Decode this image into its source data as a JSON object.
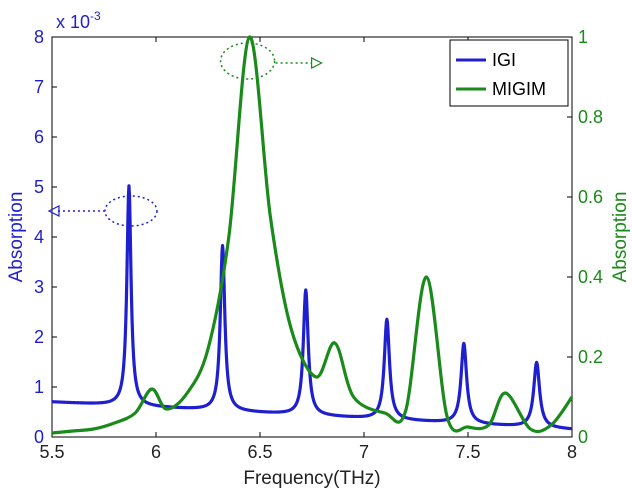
{
  "chart_data": {
    "type": "line",
    "title": "",
    "xlabel": "Frequency(THz)",
    "ylabel_left": "Absorption",
    "ylabel_right": "Absorption",
    "xlim": [
      5.5,
      8
    ],
    "ylim_left": [
      0,
      0.008
    ],
    "ylim_right": [
      0,
      1
    ],
    "x_ticks": [
      "5.5",
      "6",
      "6.5",
      "7",
      "7.5",
      "8"
    ],
    "y_left_ticks": [
      "0",
      "1",
      "2",
      "3",
      "4",
      "5",
      "6",
      "7",
      "8"
    ],
    "y_left_multiplier": "x 10",
    "y_left_exponent": "-3",
    "y_right_ticks": [
      "0",
      "0.2",
      "0.4",
      "0.6",
      "0.8",
      "1"
    ],
    "grid": false,
    "legend_position": "top-right",
    "series": [
      {
        "name": "IGI",
        "axis": "left",
        "color": "#1f1fd0",
        "peaks": [
          {
            "x": 5.87,
            "y": 0.0046,
            "w": 0.012
          },
          {
            "x": 6.32,
            "y": 0.0035,
            "w": 0.013
          },
          {
            "x": 6.72,
            "y": 0.0027,
            "w": 0.014
          },
          {
            "x": 7.11,
            "y": 0.0022,
            "w": 0.015
          },
          {
            "x": 7.48,
            "y": 0.0018,
            "w": 0.016
          },
          {
            "x": 7.83,
            "y": 0.0015,
            "w": 0.017
          }
        ],
        "x": [
          5.5,
          5.6,
          5.7,
          5.8,
          5.87,
          5.95,
          6.1,
          6.2,
          6.32,
          6.45,
          6.6,
          6.72,
          6.85,
          7.0,
          7.11,
          7.25,
          7.4,
          7.48,
          7.6,
          7.75,
          7.83,
          7.95,
          8.0
        ],
        "y": [
          0.0007,
          0.0004,
          0.00035,
          0.0006,
          0.0046,
          0.0005,
          0.00025,
          0.0004,
          0.0035,
          0.0003,
          0.00025,
          0.0027,
          0.00028,
          0.00022,
          0.0022,
          0.00025,
          0.0002,
          0.0018,
          0.0002,
          0.00018,
          0.0015,
          0.00018,
          0.00015
        ]
      },
      {
        "name": "MIGIM",
        "axis": "right",
        "color": "#1a8a1a",
        "x": [
          5.5,
          5.6,
          5.7,
          5.8,
          5.9,
          5.98,
          6.05,
          6.15,
          6.25,
          6.35,
          6.45,
          6.55,
          6.65,
          6.77,
          6.86,
          6.95,
          7.1,
          7.2,
          7.3,
          7.4,
          7.5,
          7.6,
          7.68,
          7.8,
          7.9,
          8.0
        ],
        "y": [
          0.01,
          0.015,
          0.02,
          0.035,
          0.06,
          0.12,
          0.07,
          0.11,
          0.22,
          0.5,
          1.0,
          0.55,
          0.27,
          0.15,
          0.235,
          0.1,
          0.06,
          0.065,
          0.4,
          0.05,
          0.025,
          0.03,
          0.11,
          0.02,
          0.03,
          0.1
        ]
      }
    ],
    "annotations": [
      {
        "type": "dotted-ellipse-arrow",
        "color": "#1f1fd0",
        "near_series": "IGI",
        "direction": "left"
      },
      {
        "type": "dotted-ellipse-arrow",
        "color": "#1a8a1a",
        "near_series": "MIGIM",
        "direction": "right"
      }
    ]
  }
}
